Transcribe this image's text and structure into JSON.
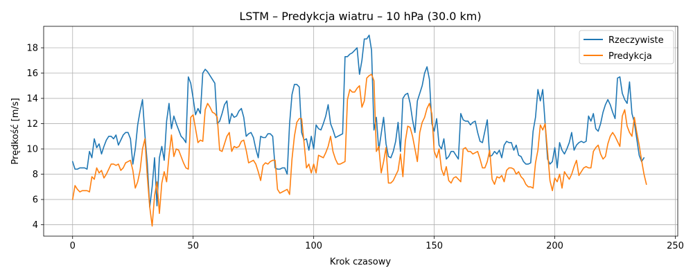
{
  "chart_data": {
    "type": "line",
    "title": "LSTM – Predykcja wiatru – 10 hPa (30.0 km)",
    "xlabel": "Krok czasowy",
    "ylabel": "Prędkość [m/s]",
    "xlim": [
      -12,
      251
    ],
    "ylim": [
      3.1,
      19.7
    ],
    "xticks": [
      0,
      50,
      100,
      150,
      200,
      250
    ],
    "yticks": [
      4,
      6,
      8,
      10,
      12,
      14,
      16,
      18
    ],
    "grid": true,
    "legend": "top-right",
    "series": [
      {
        "name": "Rzeczywiste",
        "color": "#1f77b4",
        "values": [
          9.0,
          8.4,
          8.4,
          8.5,
          8.5,
          8.5,
          8.4,
          9.8,
          9.3,
          10.8,
          10.1,
          10.4,
          9.6,
          10.2,
          10.7,
          11.0,
          11.0,
          10.8,
          11.1,
          10.3,
          10.7,
          11.1,
          11.3,
          11.3,
          10.8,
          8.8,
          10.0,
          11.9,
          13.0,
          13.9,
          11.1,
          8.8,
          5.4,
          7.0,
          9.3,
          5.5,
          9.3,
          10.2,
          9.1,
          12.2,
          13.6,
          11.6,
          12.6,
          12.0,
          11.5,
          11.0,
          10.8,
          10.5,
          15.7,
          15.2,
          14.0,
          12.7,
          13.2,
          12.8,
          16.0,
          16.3,
          16.1,
          15.8,
          15.5,
          15.2,
          12.0,
          12.2,
          12.8,
          13.5,
          13.8,
          12.0,
          12.8,
          12.5,
          12.6,
          13.0,
          13.2,
          12.5,
          11.0,
          11.2,
          11.3,
          10.9,
          10.0,
          9.3,
          11.0,
          10.9,
          10.9,
          11.2,
          11.2,
          11.0,
          8.5,
          8.4,
          8.4,
          8.5,
          8.5,
          8.0,
          12.0,
          14.3,
          15.1,
          15.1,
          14.9,
          11.3,
          10.7,
          10.8,
          9.9,
          11.0,
          10.0,
          11.9,
          11.6,
          11.5,
          12.0,
          12.6,
          13.5,
          12.0,
          11.5,
          10.9,
          11.0,
          11.1,
          11.2,
          17.3,
          17.3,
          17.5,
          17.6,
          17.8,
          18.0,
          15.9,
          17.0,
          18.7,
          18.7,
          19.0,
          17.8,
          11.5,
          12.5,
          9.9,
          11.2,
          12.5,
          10.4,
          9.4,
          9.3,
          9.8,
          10.6,
          12.1,
          9.8,
          14.0,
          14.3,
          14.4,
          13.6,
          12.3,
          11.3,
          13.8,
          14.4,
          15.0,
          16.0,
          16.5,
          15.5,
          12.0,
          11.4,
          12.4,
          10.3,
          10.0,
          10.8,
          9.2,
          9.4,
          9.8,
          9.8,
          9.5,
          9.2,
          12.8,
          12.3,
          12.2,
          12.2,
          11.9,
          12.1,
          12.2,
          11.3,
          10.6,
          10.5,
          11.4,
          12.3,
          9.4,
          9.5,
          9.8,
          9.6,
          9.9,
          9.3,
          10.3,
          10.6,
          10.5,
          10.5,
          9.9,
          10.3,
          9.5,
          9.4,
          9.0,
          8.8,
          8.8,
          8.9,
          11.4,
          12.5,
          14.7,
          13.8,
          14.7,
          12.0,
          9.2,
          8.8,
          9.0,
          10.1,
          8.5,
          10.5,
          9.9,
          9.6,
          10.0,
          10.5,
          11.3,
          9.9,
          10.3,
          10.5,
          10.6,
          10.5,
          10.6,
          12.6,
          12.2,
          12.8,
          11.6,
          11.4,
          12.0,
          12.9,
          13.5,
          13.9,
          13.5,
          12.9,
          12.4,
          15.6,
          15.7,
          14.4,
          13.9,
          13.6,
          15.3,
          12.8,
          12.1,
          10.8,
          9.5,
          9.0,
          9.3
        ]
      },
      {
        "name": "Predykcja",
        "color": "#ff7f0e",
        "values": [
          6.0,
          7.1,
          6.8,
          6.6,
          6.7,
          6.7,
          6.7,
          6.6,
          7.8,
          7.6,
          8.5,
          8.1,
          8.3,
          7.7,
          8.0,
          8.4,
          8.8,
          8.8,
          8.7,
          8.8,
          8.3,
          8.5,
          8.9,
          9.0,
          9.1,
          8.3,
          6.9,
          7.4,
          8.3,
          10.0,
          10.8,
          7.8,
          5.4,
          3.9,
          6.3,
          7.4,
          4.9,
          7.3,
          8.2,
          7.4,
          9.5,
          11.1,
          9.4,
          10.0,
          9.9,
          9.4,
          8.9,
          8.5,
          8.4,
          12.5,
          12.7,
          11.6,
          10.5,
          10.7,
          10.6,
          13.1,
          13.6,
          13.3,
          12.9,
          12.8,
          12.5,
          9.9,
          9.8,
          10.4,
          11.0,
          11.3,
          9.8,
          10.2,
          10.1,
          10.2,
          10.6,
          10.7,
          9.9,
          8.9,
          9.0,
          9.1,
          8.8,
          8.2,
          7.5,
          8.7,
          8.9,
          8.8,
          9.0,
          9.1,
          9.1,
          6.8,
          6.5,
          6.6,
          6.7,
          6.8,
          6.4,
          9.2,
          11.0,
          12.1,
          12.4,
          12.4,
          10.5,
          8.5,
          8.8,
          8.1,
          8.8,
          8.1,
          9.5,
          9.4,
          9.3,
          9.7,
          10.2,
          11.0,
          9.8,
          9.2,
          8.8,
          8.8,
          8.9,
          9.0,
          13.9,
          14.7,
          14.5,
          14.5,
          14.8,
          15.0,
          13.3,
          13.8,
          15.6,
          15.8,
          15.9,
          15.4,
          9.8,
          10.2,
          8.1,
          9.0,
          10.1,
          7.3,
          7.3,
          7.5,
          7.9,
          8.3,
          9.6,
          7.8,
          10.6,
          11.8,
          11.7,
          11.0,
          10.0,
          9.0,
          11.3,
          12.1,
          12.5,
          13.2,
          13.6,
          12.8,
          9.8,
          9.3,
          10.0,
          8.4,
          7.9,
          8.6,
          7.5,
          7.3,
          7.7,
          7.8,
          7.6,
          7.4,
          10.0,
          10.1,
          9.8,
          9.8,
          9.6,
          9.7,
          9.8,
          9.2,
          8.5,
          8.5,
          9.0,
          9.9,
          7.6,
          7.2,
          7.8,
          7.7,
          7.9,
          7.4,
          8.3,
          8.5,
          8.5,
          8.4,
          8.0,
          8.2,
          7.8,
          7.6,
          7.2,
          7.0,
          7.0,
          6.9,
          8.9,
          9.9,
          11.9,
          11.5,
          12.0,
          9.8,
          7.5,
          6.7,
          7.7,
          7.4,
          8.0,
          6.9,
          8.2,
          7.9,
          7.6,
          8.0,
          8.6,
          9.1,
          7.9,
          8.2,
          8.5,
          8.6,
          8.5,
          8.5,
          9.8,
          10.1,
          10.3,
          9.6,
          9.2,
          9.4,
          10.4,
          11.0,
          11.3,
          11.0,
          10.6,
          10.2,
          12.6,
          13.1,
          11.8,
          11.3,
          11.0,
          12.5,
          11.3,
          10.3,
          9.1,
          8.0,
          7.2
        ]
      }
    ]
  }
}
